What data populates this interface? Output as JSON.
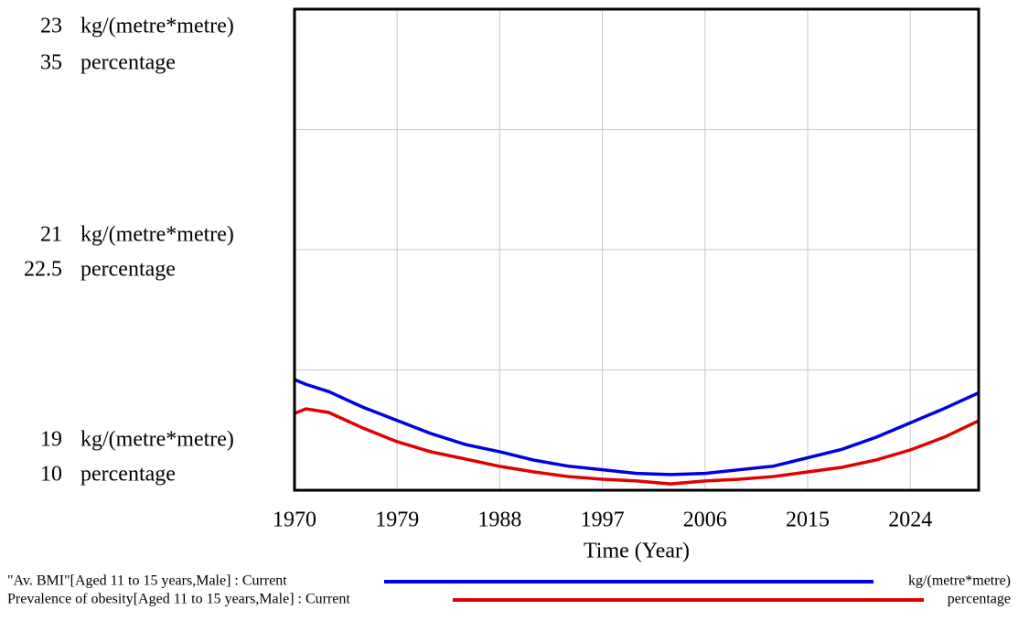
{
  "chart_data": {
    "type": "line",
    "x_label": "Time (Year)",
    "x": [
      1970,
      1971,
      1973,
      1976,
      1979,
      1982,
      1985,
      1988,
      1991,
      1994,
      1997,
      2000,
      2003,
      2006,
      2009,
      2012,
      2015,
      2018,
      2021,
      2024,
      2027,
      2030
    ],
    "xlim": [
      1970,
      2030
    ],
    "xticks": [
      1970,
      1979,
      1988,
      1997,
      2006,
      2015,
      2024
    ],
    "ylim": [
      19,
      23
    ],
    "yticks": [
      19,
      21,
      23
    ],
    "y_unit": "kg/(metre*metre)",
    "ygrid": [
      19,
      20,
      21,
      22,
      23
    ],
    "y2lim": [
      10,
      35
    ],
    "y2ticks": [
      10,
      22.5,
      35
    ],
    "y2_unit": "percentage",
    "grid": true,
    "series": [
      {
        "name": "\"Av. BMI\"[Aged 11 to 15 years,Male] : Current",
        "unit": "kg/(metre*metre)",
        "color": "#0000e0",
        "values": [
          19.92,
          19.88,
          19.82,
          19.69,
          19.58,
          19.47,
          19.38,
          19.32,
          19.25,
          19.2,
          19.17,
          19.14,
          19.13,
          19.14,
          19.17,
          19.2,
          19.27,
          19.34,
          19.44,
          19.56,
          19.68,
          19.81
        ]
      },
      {
        "name": "Prevalence of obesity[Aged 11 to 15 years,Male] : Current",
        "unit": "percentage",
        "color": "#e00000",
        "axis": "y2",
        "values": [
          13.99,
          14.23,
          14.04,
          13.23,
          12.52,
          11.99,
          11.62,
          11.24,
          10.95,
          10.71,
          10.57,
          10.48,
          10.33,
          10.48,
          10.57,
          10.71,
          10.95,
          11.19,
          11.57,
          12.09,
          12.76,
          13.61
        ]
      }
    ]
  }
}
